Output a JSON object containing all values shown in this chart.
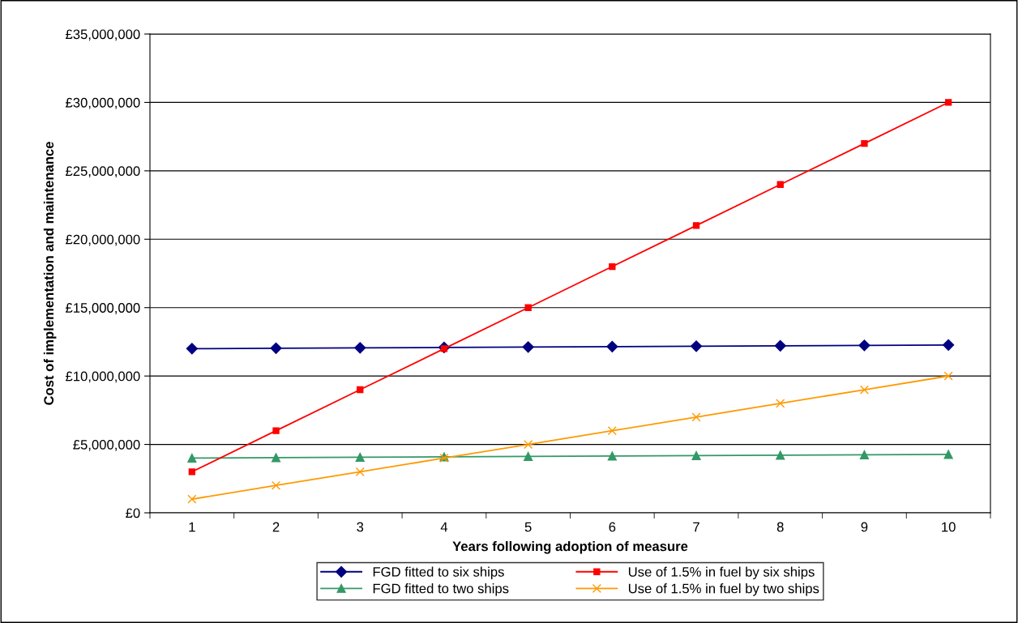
{
  "chart_data": {
    "type": "line",
    "xlabel": "Years following adoption of measure",
    "ylabel": "Cost of implementation and maintenance",
    "categories": [
      "1",
      "2",
      "3",
      "4",
      "5",
      "6",
      "7",
      "8",
      "9",
      "10"
    ],
    "series": [
      {
        "name": "FGD fitted to six ships",
        "color": "#000080",
        "marker": "diamond",
        "values": [
          12000000,
          12030000,
          12060000,
          12090000,
          12120000,
          12150000,
          12180000,
          12210000,
          12240000,
          12270000
        ]
      },
      {
        "name": "Use of 1.5% in fuel by six ships",
        "color": "#ff0000",
        "marker": "square",
        "values": [
          3000000,
          6000000,
          9000000,
          12000000,
          15000000,
          18000000,
          21000000,
          24000000,
          27000000,
          30000000
        ]
      },
      {
        "name": "FGD fitted to two ships",
        "color": "#339966",
        "marker": "triangle",
        "values": [
          4000000,
          4030000,
          4060000,
          4090000,
          4120000,
          4150000,
          4180000,
          4210000,
          4240000,
          4270000
        ]
      },
      {
        "name": "Use of 1.5% in fuel by two ships",
        "color": "#ff9900",
        "marker": "cross",
        "values": [
          1000000,
          2000000,
          3000000,
          4000000,
          5000000,
          6000000,
          7000000,
          8000000,
          9000000,
          10000000
        ]
      }
    ],
    "ylim": [
      0,
      35000000
    ],
    "yticks": [
      {
        "value": 0,
        "label": "£0"
      },
      {
        "value": 5000000,
        "label": "£5,000,000"
      },
      {
        "value": 10000000,
        "label": "£10,000,000"
      },
      {
        "value": 15000000,
        "label": "£15,000,000"
      },
      {
        "value": 20000000,
        "label": "£20,000,000"
      },
      {
        "value": 25000000,
        "label": "£25,000,000"
      },
      {
        "value": 30000000,
        "label": "£30,000,000"
      },
      {
        "value": 35000000,
        "label": "£35,000,000"
      }
    ],
    "grid": "y",
    "legend": "bottom",
    "line_style": "solid"
  }
}
